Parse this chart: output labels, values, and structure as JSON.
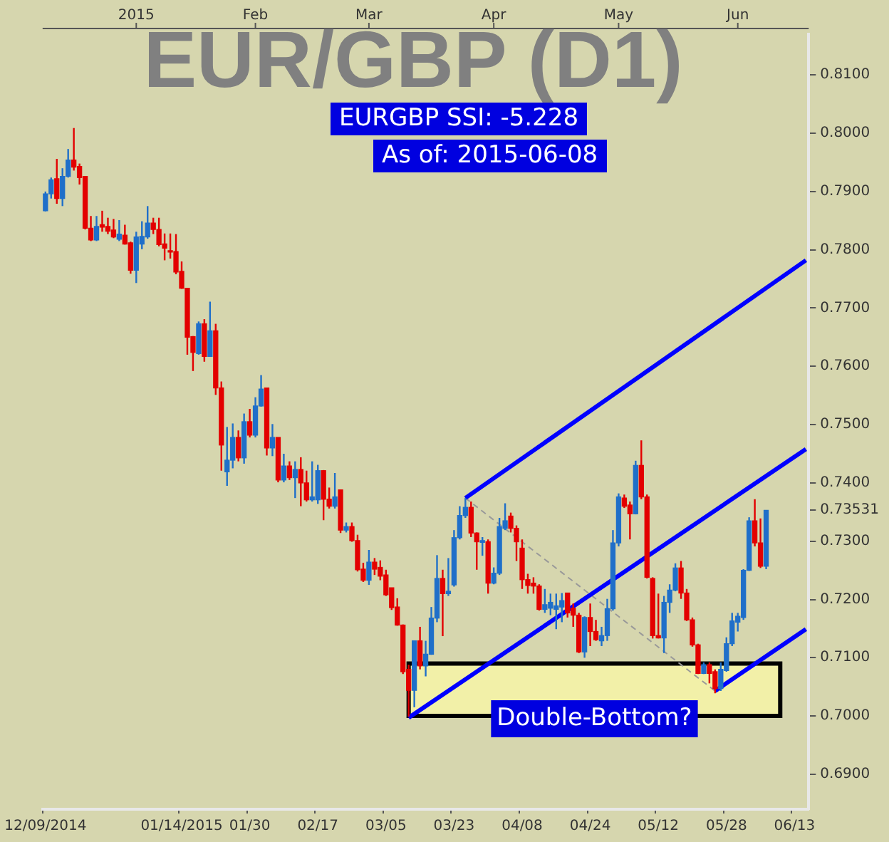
{
  "chart_data": {
    "type": "candlestick",
    "title": "EUR/GBP (D1)",
    "annotations": [
      "EURGBP SSI: -5.228",
      "As of: 2015-06-08",
      "2015",
      "Feb",
      "Mar",
      "Apr",
      "May",
      "Jun"
    ],
    "categories": [
      "12/09/2014",
      null,
      null,
      null,
      null,
      null,
      null,
      null,
      null,
      null,
      null,
      null,
      null,
      null,
      null,
      null,
      null,
      null,
      null,
      null,
      null,
      null,
      null,
      null,
      "01/14/2015",
      null,
      null,
      null,
      null,
      null,
      null,
      null,
      null,
      null,
      null,
      null,
      "01/30",
      null,
      null,
      null,
      null,
      null,
      null,
      null,
      null,
      null,
      null,
      null,
      "02/17",
      null,
      null,
      null,
      null,
      null,
      null,
      null,
      null,
      null,
      null,
      null,
      "03/05",
      null,
      null,
      null,
      null,
      null,
      null,
      null,
      null,
      null,
      null,
      null,
      "03/23",
      null,
      null,
      null,
      null,
      null,
      null,
      null,
      null,
      null,
      null,
      null,
      "04/08",
      null,
      null,
      null,
      null,
      null,
      null,
      null,
      null,
      null,
      null,
      null,
      "04/24",
      null,
      null,
      null,
      null,
      null,
      null,
      null,
      null,
      null,
      null,
      null,
      "05/12",
      null,
      null,
      null,
      null,
      null,
      null,
      null,
      null,
      null,
      null,
      null,
      "05/28",
      null,
      null,
      null,
      null,
      null,
      null,
      null,
      null,
      null,
      null,
      null,
      "06/13",
      null,
      null
    ],
    "ohlc": [
      [
        0.7867,
        0.79,
        0.7866,
        0.7896
      ],
      [
        0.7896,
        0.7924,
        0.7888,
        0.792
      ],
      [
        0.7922,
        0.7956,
        0.7879,
        0.7888
      ],
      [
        0.7888,
        0.794,
        0.7875,
        0.7926
      ],
      [
        0.7926,
        0.7973,
        0.7924,
        0.7954
      ],
      [
        0.7954,
        0.8009,
        0.7936,
        0.7942
      ],
      [
        0.7943,
        0.7948,
        0.7912,
        0.7924
      ],
      [
        0.7926,
        0.7926,
        0.7835,
        0.7837
      ],
      [
        0.7837,
        0.7858,
        0.7815,
        0.7817
      ],
      [
        0.7817,
        0.7858,
        0.7815,
        0.784
      ],
      [
        0.7843,
        0.7867,
        0.7831,
        0.7839
      ],
      [
        0.784,
        0.7855,
        0.7827,
        0.7832
      ],
      [
        0.7834,
        0.7853,
        0.782,
        0.7822
      ],
      [
        0.7818,
        0.7851,
        0.7815,
        0.7827
      ],
      [
        0.7825,
        0.7843,
        0.7809,
        0.781
      ],
      [
        0.7812,
        0.7814,
        0.7759,
        0.7765
      ],
      [
        0.7765,
        0.7831,
        0.7743,
        0.7822
      ],
      [
        0.781,
        0.7849,
        0.7801,
        0.7823
      ],
      [
        0.7822,
        0.7875,
        0.7819,
        0.7846
      ],
      [
        0.7846,
        0.7855,
        0.7827,
        0.7835
      ],
      [
        0.7835,
        0.7855,
        0.7806,
        0.7809
      ],
      [
        0.781,
        0.7828,
        0.7782,
        0.7803
      ],
      [
        0.7797,
        0.7828,
        0.7785,
        0.7796
      ],
      [
        0.7797,
        0.7827,
        0.7758,
        0.7762
      ],
      [
        0.7763,
        0.778,
        0.7733,
        0.7734
      ],
      [
        0.7734,
        0.7734,
        0.762,
        0.765
      ],
      [
        0.7651,
        0.7652,
        0.7592,
        0.7624
      ],
      [
        0.7622,
        0.7677,
        0.762,
        0.7673
      ],
      [
        0.7673,
        0.7681,
        0.7608,
        0.7617
      ],
      [
        0.7617,
        0.7711,
        0.7617,
        0.7661
      ],
      [
        0.7661,
        0.7673,
        0.7551,
        0.7563
      ],
      [
        0.7563,
        0.7574,
        0.7421,
        0.7465
      ],
      [
        0.7419,
        0.7496,
        0.7395,
        0.7439
      ],
      [
        0.7439,
        0.7502,
        0.7425,
        0.7478
      ],
      [
        0.7478,
        0.749,
        0.7437,
        0.7443
      ],
      [
        0.7443,
        0.7519,
        0.7433,
        0.7505
      ],
      [
        0.7505,
        0.7527,
        0.7478,
        0.7482
      ],
      [
        0.7482,
        0.7547,
        0.7478,
        0.7532
      ],
      [
        0.7532,
        0.7585,
        0.7531,
        0.7561
      ],
      [
        0.7563,
        0.7563,
        0.7447,
        0.746
      ],
      [
        0.746,
        0.7501,
        0.7446,
        0.7478
      ],
      [
        0.7478,
        0.7478,
        0.7401,
        0.7405
      ],
      [
        0.7405,
        0.745,
        0.7401,
        0.7429
      ],
      [
        0.7429,
        0.7437,
        0.7405,
        0.7409
      ],
      [
        0.7409,
        0.7437,
        0.7374,
        0.7423
      ],
      [
        0.7423,
        0.7444,
        0.736,
        0.74
      ],
      [
        0.74,
        0.7421,
        0.7368,
        0.7371
      ],
      [
        0.7371,
        0.7437,
        0.7368,
        0.7376
      ],
      [
        0.7371,
        0.7431,
        0.7364,
        0.7421
      ],
      [
        0.7421,
        0.7422,
        0.7336,
        0.7372
      ],
      [
        0.7372,
        0.7392,
        0.7356,
        0.736
      ],
      [
        0.736,
        0.7417,
        0.7356,
        0.7376
      ],
      [
        0.7388,
        0.7388,
        0.7314,
        0.7319
      ],
      [
        0.7319,
        0.7332,
        0.7315,
        0.7325
      ],
      [
        0.7325,
        0.7332,
        0.7299,
        0.7301
      ],
      [
        0.7301,
        0.7311,
        0.7248,
        0.7251
      ],
      [
        0.7252,
        0.7263,
        0.723,
        0.7233
      ],
      [
        0.7233,
        0.7285,
        0.7225,
        0.7264
      ],
      [
        0.7264,
        0.7271,
        0.7242,
        0.7252
      ],
      [
        0.7255,
        0.7267,
        0.7233,
        0.724
      ],
      [
        0.7242,
        0.7251,
        0.7206,
        0.7208
      ],
      [
        0.722,
        0.722,
        0.7182,
        0.7186
      ],
      [
        0.7187,
        0.7202,
        0.7155,
        0.7156
      ],
      [
        0.7156,
        0.7157,
        0.7072,
        0.7076
      ],
      [
        0.708,
        0.7088,
        0.6999,
        0.7044
      ],
      [
        0.7044,
        0.7129,
        0.7015,
        0.7129
      ],
      [
        0.7129,
        0.7153,
        0.708,
        0.7086
      ],
      [
        0.7086,
        0.7129,
        0.7068,
        0.7106
      ],
      [
        0.7106,
        0.7187,
        0.7105,
        0.7168
      ],
      [
        0.7168,
        0.7276,
        0.7161,
        0.7236
      ],
      [
        0.7236,
        0.7251,
        0.7137,
        0.721
      ],
      [
        0.721,
        0.7271,
        0.7206,
        0.7214
      ],
      [
        0.7225,
        0.7319,
        0.7222,
        0.7306
      ],
      [
        0.7306,
        0.736,
        0.7303,
        0.7344
      ],
      [
        0.7344,
        0.7374,
        0.734,
        0.7358
      ],
      [
        0.7358,
        0.7368,
        0.7307,
        0.7314
      ],
      [
        0.7314,
        0.7315,
        0.7251,
        0.7299
      ],
      [
        0.7298,
        0.7307,
        0.7275,
        0.7301
      ],
      [
        0.7299,
        0.7303,
        0.721,
        0.7228
      ],
      [
        0.7228,
        0.7255,
        0.7226,
        0.7245
      ],
      [
        0.7245,
        0.734,
        0.7242,
        0.7325
      ],
      [
        0.7322,
        0.7365,
        0.7319,
        0.7335
      ],
      [
        0.7343,
        0.7349,
        0.7315,
        0.7322
      ],
      [
        0.7322,
        0.7327,
        0.7266,
        0.7299
      ],
      [
        0.7288,
        0.7303,
        0.7218,
        0.7234
      ],
      [
        0.7234,
        0.7244,
        0.721,
        0.7224
      ],
      [
        0.7228,
        0.7238,
        0.721,
        0.7223
      ],
      [
        0.7223,
        0.7226,
        0.7181,
        0.7183
      ],
      [
        0.7183,
        0.7218,
        0.7177,
        0.7191
      ],
      [
        0.7185,
        0.721,
        0.7173,
        0.7195
      ],
      [
        0.7183,
        0.721,
        0.7149,
        0.7189
      ],
      [
        0.7187,
        0.7211,
        0.7161,
        0.7198
      ],
      [
        0.7211,
        0.7211,
        0.7169,
        0.7177
      ],
      [
        0.7185,
        0.7193,
        0.7153,
        0.7173
      ],
      [
        0.7173,
        0.7177,
        0.7108,
        0.711
      ],
      [
        0.711,
        0.7171,
        0.71,
        0.7169
      ],
      [
        0.7169,
        0.7193,
        0.712,
        0.7145
      ],
      [
        0.7145,
        0.7165,
        0.7129,
        0.7131
      ],
      [
        0.7129,
        0.7153,
        0.712,
        0.7138
      ],
      [
        0.7138,
        0.7201,
        0.7129,
        0.7184
      ],
      [
        0.7184,
        0.7319,
        0.7181,
        0.7297
      ],
      [
        0.7297,
        0.7382,
        0.7291,
        0.7376
      ],
      [
        0.7374,
        0.738,
        0.7357,
        0.736
      ],
      [
        0.7362,
        0.7368,
        0.7303,
        0.7347
      ],
      [
        0.7347,
        0.7438,
        0.7346,
        0.743
      ],
      [
        0.743,
        0.7473,
        0.7372,
        0.7376
      ],
      [
        0.7376,
        0.738,
        0.7236,
        0.7238
      ],
      [
        0.7236,
        0.7238,
        0.7133,
        0.7138
      ],
      [
        0.7138,
        0.721,
        0.7133,
        0.7134
      ],
      [
        0.7134,
        0.7206,
        0.7108,
        0.7195
      ],
      [
        0.7195,
        0.7226,
        0.7177,
        0.7216
      ],
      [
        0.7216,
        0.7262,
        0.7214,
        0.7254
      ],
      [
        0.7254,
        0.7266,
        0.7201,
        0.7211
      ],
      [
        0.7211,
        0.7218,
        0.7163,
        0.7165
      ],
      [
        0.7165,
        0.7169,
        0.7119,
        0.7122
      ],
      [
        0.7122,
        0.7124,
        0.7072,
        0.7073
      ],
      [
        0.7073,
        0.7092,
        0.7072,
        0.7088
      ],
      [
        0.7088,
        0.7092,
        0.7056,
        0.7073
      ],
      [
        0.7076,
        0.708,
        0.7039,
        0.7047
      ],
      [
        0.7047,
        0.7092,
        0.7043,
        0.708
      ],
      [
        0.7078,
        0.7135,
        0.7076,
        0.7124
      ],
      [
        0.7124,
        0.7177,
        0.712,
        0.7163
      ],
      [
        0.7161,
        0.7177,
        0.7145,
        0.7171
      ],
      [
        0.7169,
        0.7252,
        0.7165,
        0.725
      ],
      [
        0.725,
        0.7341,
        0.7249,
        0.7335
      ],
      [
        0.7335,
        0.7372,
        0.7291,
        0.7297
      ],
      [
        0.7297,
        0.7339,
        0.7254,
        0.7257
      ],
      [
        0.7257,
        0.7353,
        0.7252,
        0.7353
      ],
      null,
      null,
      null,
      null,
      null,
      null,
      null
    ],
    "colors": [
      "#1f6fc9",
      "#1f6fc9",
      "#e30000",
      "#1f6fc9",
      "#1f6fc9",
      "#e30000",
      "#e30000",
      "#e30000",
      "#e30000",
      "#1f6fc9",
      "#e30000",
      "#e30000",
      "#e30000",
      "#1f6fc9",
      "#e30000",
      "#e30000",
      "#1f6fc9",
      "#1f6fc9",
      "#1f6fc9",
      "#e30000",
      "#e30000",
      "#e30000",
      "#e30000",
      "#e30000",
      "#e30000",
      "#e30000",
      "#e30000",
      "#1f6fc9",
      "#e30000",
      "#1f6fc9",
      "#e30000",
      "#e30000",
      "#1f6fc9",
      "#1f6fc9",
      "#e30000",
      "#1f6fc9",
      "#e30000",
      "#1f6fc9",
      "#1f6fc9",
      "#e30000",
      "#1f6fc9",
      "#e30000",
      "#1f6fc9",
      "#e30000",
      "#1f6fc9",
      "#e30000",
      "#e30000",
      "#1f6fc9",
      "#1f6fc9",
      "#e30000",
      "#e30000",
      "#1f6fc9",
      "#e30000",
      "#1f6fc9",
      "#e30000",
      "#e30000",
      "#e30000",
      "#1f6fc9",
      "#e30000",
      "#e30000",
      "#e30000",
      "#e30000",
      "#e30000",
      "#e30000",
      "#e30000",
      "#1f6fc9",
      "#e30000",
      "#1f6fc9",
      "#1f6fc9",
      "#1f6fc9",
      "#e30000",
      "#1f6fc9",
      "#1f6fc9",
      "#1f6fc9",
      "#1f6fc9",
      "#e30000",
      "#e30000",
      "#1f6fc9",
      "#e30000",
      "#1f6fc9",
      "#1f6fc9",
      "#1f6fc9",
      "#e30000",
      "#e30000",
      "#e30000",
      "#e30000",
      "#e30000",
      "#e30000",
      "#1f6fc9",
      "#1f6fc9",
      "#1f6fc9",
      "#1f6fc9",
      "#e30000",
      "#e30000",
      "#e30000",
      "#1f6fc9",
      "#e30000",
      "#e30000",
      "#1f6fc9",
      "#1f6fc9",
      "#1f6fc9",
      "#1f6fc9",
      "#e30000",
      "#e30000",
      "#1f6fc9",
      "#e30000",
      "#e30000",
      "#e30000",
      "#e30000",
      "#1f6fc9",
      "#1f6fc9",
      "#1f6fc9",
      "#e30000",
      "#e30000",
      "#e30000",
      "#e30000",
      "#1f6fc9",
      "#e30000",
      "#e30000",
      "#1f6fc9",
      "#1f6fc9",
      "#1f6fc9",
      "#1f6fc9",
      "#1f6fc9",
      "#1f6fc9",
      "#e30000",
      "#e30000",
      "#1f6fc9",
      null,
      null,
      null,
      null,
      null,
      null,
      null
    ],
    "series": [
      {
        "type": "line",
        "color": "#0000ff",
        "values": [
          null,
          null,
          null,
          null,
          null,
          null,
          null,
          null,
          null,
          null,
          null,
          null,
          null,
          null,
          null,
          null,
          null,
          null,
          null,
          null,
          null,
          null,
          null,
          null,
          null,
          null,
          null,
          null,
          null,
          null,
          null,
          null,
          null,
          null,
          null,
          null,
          null,
          null,
          null,
          null,
          null,
          null,
          null,
          null,
          null,
          null,
          null,
          null,
          null,
          null,
          null,
          null,
          null,
          null,
          null,
          null,
          null,
          null,
          null,
          null,
          null,
          null,
          null,
          null,
          null,
          null,
          null,
          null,
          null,
          null,
          null,
          null,
          null,
          null,
          0.7374,
          null,
          null,
          null,
          null,
          null,
          null,
          null,
          null,
          null,
          null,
          null,
          null,
          null,
          null,
          null,
          null,
          null,
          null,
          null,
          null,
          null,
          null,
          null,
          null,
          null,
          null,
          null,
          null,
          null,
          null,
          null,
          null,
          null,
          null,
          null,
          null,
          null,
          null,
          null,
          null,
          null,
          null,
          null,
          null,
          null,
          null,
          null,
          null,
          null,
          null,
          null,
          null,
          null,
          null,
          null,
          null,
          null,
          null,
          null,
          0.7782
        ]
      },
      {
        "type": "line",
        "color": "#0000ff",
        "values": [
          null,
          null,
          null,
          null,
          null,
          null,
          null,
          null,
          null,
          null,
          null,
          null,
          null,
          null,
          null,
          null,
          null,
          null,
          null,
          null,
          null,
          null,
          null,
          null,
          null,
          null,
          null,
          null,
          null,
          null,
          null,
          null,
          null,
          null,
          null,
          null,
          null,
          null,
          null,
          null,
          null,
          null,
          null,
          null,
          null,
          null,
          null,
          null,
          null,
          null,
          null,
          null,
          null,
          null,
          null,
          null,
          null,
          null,
          null,
          null,
          null,
          null,
          null,
          null,
          0.6997,
          null,
          null,
          null,
          null,
          null,
          null,
          null,
          null,
          null,
          null,
          null,
          null,
          null,
          null,
          null,
          null,
          null,
          null,
          null,
          null,
          null,
          null,
          null,
          null,
          null,
          null,
          null,
          null,
          null,
          null,
          null,
          null,
          null,
          null,
          null,
          null,
          null,
          null,
          null,
          null,
          null,
          null,
          null,
          null,
          null,
          null,
          null,
          null,
          null,
          null,
          null,
          null,
          null,
          null,
          null,
          null,
          null,
          null,
          null,
          null,
          null,
          null,
          null,
          null,
          null,
          null,
          null,
          null,
          null,
          0.7458
        ]
      },
      {
        "type": "line",
        "color": "#0000ff",
        "values": [
          null,
          null,
          null,
          null,
          null,
          null,
          null,
          null,
          null,
          null,
          null,
          null,
          null,
          null,
          null,
          null,
          null,
          null,
          null,
          null,
          null,
          null,
          null,
          null,
          null,
          null,
          null,
          null,
          null,
          null,
          null,
          null,
          null,
          null,
          null,
          null,
          null,
          null,
          null,
          null,
          null,
          null,
          null,
          null,
          null,
          null,
          null,
          null,
          null,
          null,
          null,
          null,
          null,
          null,
          null,
          null,
          null,
          null,
          null,
          null,
          null,
          null,
          null,
          null,
          null,
          null,
          null,
          null,
          null,
          null,
          null,
          null,
          null,
          null,
          null,
          null,
          null,
          null,
          null,
          null,
          null,
          null,
          null,
          null,
          null,
          null,
          null,
          null,
          null,
          null,
          null,
          null,
          null,
          null,
          null,
          null,
          null,
          null,
          null,
          null,
          null,
          null,
          null,
          null,
          null,
          null,
          null,
          null,
          null,
          null,
          null,
          null,
          null,
          null,
          null,
          null,
          null,
          null,
          0.7043,
          null,
          null,
          null,
          null,
          null,
          null,
          null,
          null,
          null,
          null,
          null,
          null,
          null,
          null,
          null,
          0.7149
        ]
      },
      {
        "type": "line",
        "color": "#999999",
        "line_style": "dashed",
        "values": [
          null,
          null,
          null,
          null,
          null,
          null,
          null,
          null,
          null,
          null,
          null,
          null,
          null,
          null,
          null,
          null,
          null,
          null,
          null,
          null,
          null,
          null,
          null,
          null,
          null,
          null,
          null,
          null,
          null,
          null,
          null,
          null,
          null,
          null,
          null,
          null,
          null,
          null,
          null,
          null,
          null,
          null,
          null,
          null,
          null,
          null,
          null,
          null,
          null,
          null,
          null,
          null,
          null,
          null,
          null,
          null,
          null,
          null,
          null,
          null,
          null,
          null,
          null,
          null,
          null,
          null,
          null,
          null,
          null,
          null,
          null,
          null,
          null,
          null,
          0.7374,
          null,
          null,
          null,
          null,
          null,
          null,
          null,
          null,
          null,
          null,
          null,
          null,
          null,
          null,
          null,
          null,
          null,
          null,
          null,
          null,
          null,
          null,
          null,
          null,
          null,
          null,
          null,
          null,
          null,
          null,
          null,
          null,
          null,
          null,
          null,
          null,
          null,
          null,
          null,
          null,
          null,
          null,
          null,
          0.7043,
          null,
          null,
          null,
          null,
          null,
          null,
          null,
          null,
          null,
          null,
          null,
          null,
          null,
          null,
          null,
          null
        ]
      }
    ],
    "bands": [
      {
        "axis": "y",
        "from": 0.7,
        "to": 0.709,
        "label": "Double-Bottom?",
        "color": "#f2f0a8"
      }
    ],
    "ylim": [
      0.684,
      0.817
    ],
    "yticks": [
      {
        "value": 0.69,
        "label": "0.6900"
      },
      {
        "value": 0.7,
        "label": "0.7000"
      },
      {
        "value": 0.71,
        "label": "0.7100"
      },
      {
        "value": 0.72,
        "label": "0.7200"
      },
      {
        "value": 0.73,
        "label": "0.7300"
      },
      {
        "value": 0.73531,
        "label": "0.73531"
      },
      {
        "value": 0.74,
        "label": "0.7400"
      },
      {
        "value": 0.75,
        "label": "0.7500"
      },
      {
        "value": 0.76,
        "label": "0.7600"
      },
      {
        "value": 0.77,
        "label": "0.7700"
      },
      {
        "value": 0.78,
        "label": "0.7800"
      },
      {
        "value": 0.79,
        "label": "0.7900"
      },
      {
        "value": 0.8,
        "label": "0.8000"
      },
      {
        "value": 0.81,
        "label": "0.8100"
      }
    ]
  }
}
